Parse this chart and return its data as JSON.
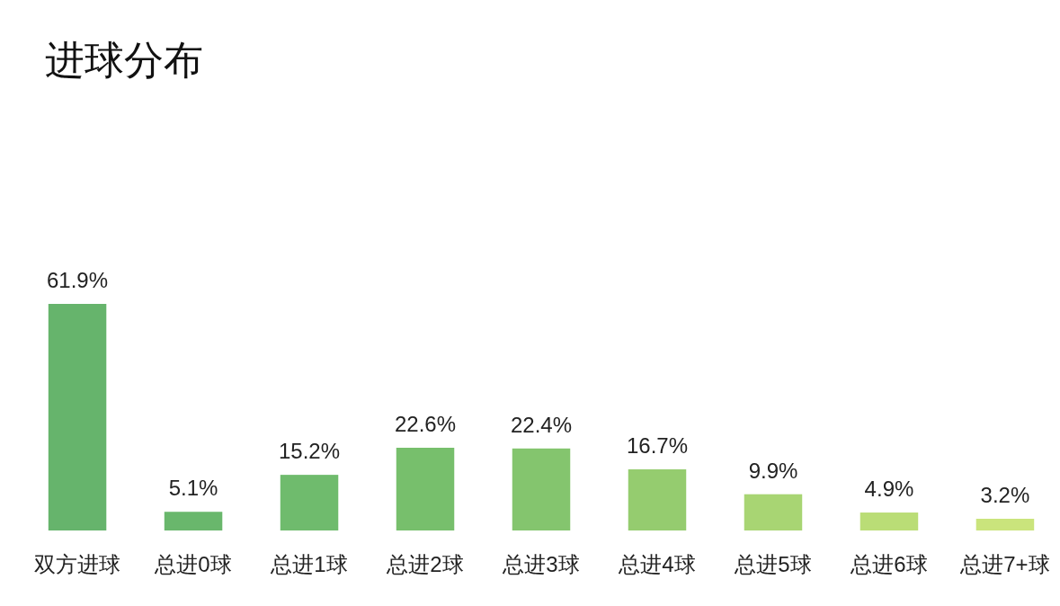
{
  "chart_data": {
    "type": "bar",
    "title": "进球分布",
    "categories": [
      "双方进球",
      "总进0球",
      "总进1球",
      "总进2球",
      "总进3球",
      "总进4球",
      "总进5球",
      "总进6球",
      "总进7+球"
    ],
    "values": [
      61.9,
      5.1,
      15.2,
      22.6,
      22.4,
      16.7,
      9.9,
      4.9,
      3.2
    ],
    "value_labels": [
      "61.9%",
      "5.1%",
      "15.2%",
      "22.6%",
      "22.4%",
      "16.7%",
      "9.9%",
      "4.9%",
      "3.2%"
    ],
    "colors": [
      "#66b46c",
      "#69b76c",
      "#6fbb6d",
      "#77bf6c",
      "#84c56e",
      "#95cc6f",
      "#a8d573",
      "#badd76",
      "#cae47c"
    ]
  }
}
